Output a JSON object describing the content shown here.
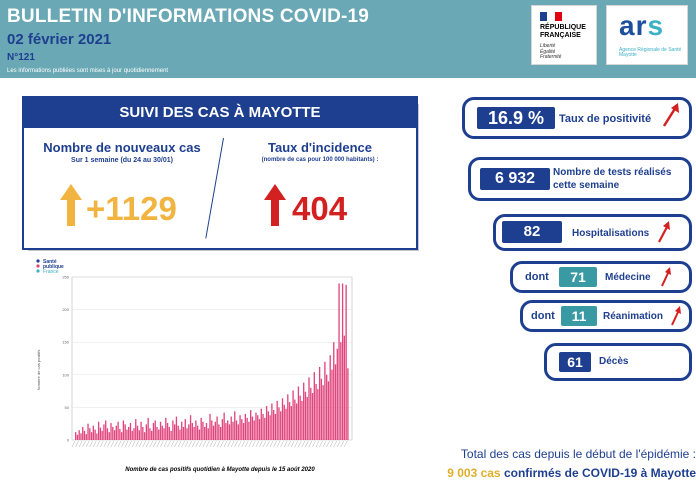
{
  "header": {
    "title": "BULLETIN D'INFORMATIONS COVID-19",
    "date": "02 février 2021",
    "number": "N°121",
    "note": "Les informations publiées sont mises à jour quotidiennement"
  },
  "logos": {
    "republique": "RÉPUBLIQUE\nFRANÇAISE",
    "motto": "Liberté\nÉgalité\nFraternité",
    "ars_main": "ar",
    "ars_s": "s",
    "ars_sub": "Agence Régionale de Santé\nMayotte"
  },
  "panel": {
    "heading": "SUIVI DES CAS À MAYOTTE",
    "left": {
      "title": "Nombre de nouveaux cas",
      "subtitle": "Sur 1 semaine (du 24 au 30/01)",
      "value": "+1129"
    },
    "right": {
      "title": "Taux d'incidence",
      "subtitle": "(nombre de cas pour 100 000 habitants) :",
      "value": "404"
    }
  },
  "sante_publique": {
    "line1": "Santé",
    "line2": "publique",
    "line3": "France"
  },
  "chart_data": {
    "type": "bar",
    "ylabel": "Nombre de cas positifs",
    "ylim": [
      0,
      250
    ],
    "yticks": [
      0,
      50,
      100,
      150,
      200,
      250
    ],
    "caption": "Nombre de cas positifs quotidien à Mayotte depuis le 15 août 2020",
    "values": [
      12,
      8,
      15,
      10,
      20,
      14,
      9,
      25,
      18,
      12,
      22,
      16,
      10,
      28,
      19,
      14,
      24,
      30,
      18,
      12,
      26,
      20,
      15,
      22,
      28,
      17,
      12,
      30,
      24,
      16,
      20,
      26,
      14,
      18,
      32,
      22,
      15,
      28,
      20,
      12,
      24,
      34,
      18,
      14,
      26,
      30,
      20,
      16,
      28,
      22,
      18,
      34,
      26,
      20,
      14,
      30,
      24,
      36,
      22,
      16,
      28,
      20,
      32,
      18,
      24,
      38,
      26,
      20,
      30,
      22,
      16,
      34,
      28,
      20,
      26,
      18,
      40,
      30,
      22,
      28,
      36,
      24,
      20,
      32,
      42,
      26,
      30,
      24,
      36,
      28,
      44,
      30,
      24,
      38,
      32,
      26,
      40,
      34,
      28,
      46,
      36,
      30,
      42,
      38,
      32,
      48,
      40,
      34,
      52,
      44,
      38,
      56,
      46,
      40,
      60,
      50,
      44,
      64,
      54,
      48,
      70,
      58,
      52,
      76,
      62,
      56,
      82,
      68,
      60,
      88,
      74,
      66,
      96,
      80,
      72,
      104,
      86,
      78,
      112,
      94,
      84,
      120,
      100,
      90,
      130,
      108,
      150,
      116,
      140,
      240,
      150,
      240,
      160,
      238,
      110
    ]
  },
  "stats": {
    "positivite": {
      "value": "16.9 %",
      "label": "Taux de positivité"
    },
    "tests": {
      "value": "6 932",
      "label": "Nombre de tests réalisés\ncette semaine"
    },
    "hospitalisations": {
      "value": "82",
      "label": "Hospitalisations"
    },
    "medecine": {
      "prefix": "dont",
      "value": "71",
      "label": "Médecine"
    },
    "reanimation": {
      "prefix": "dont",
      "value": "11",
      "label": "Réanimation"
    },
    "deces": {
      "value": "61",
      "label": "Décès"
    }
  },
  "footer": {
    "line1": "Total des cas depuis le début de l'épidémie :",
    "count": "9 003 cas",
    "rest": " confirmés de COVID-19 à Mayotte"
  },
  "colors": {
    "navy": "#1e3f8f",
    "teal": "#69a8b4",
    "bar": "#e0457b",
    "orange": "#f2b441",
    "red": "#d32020"
  }
}
